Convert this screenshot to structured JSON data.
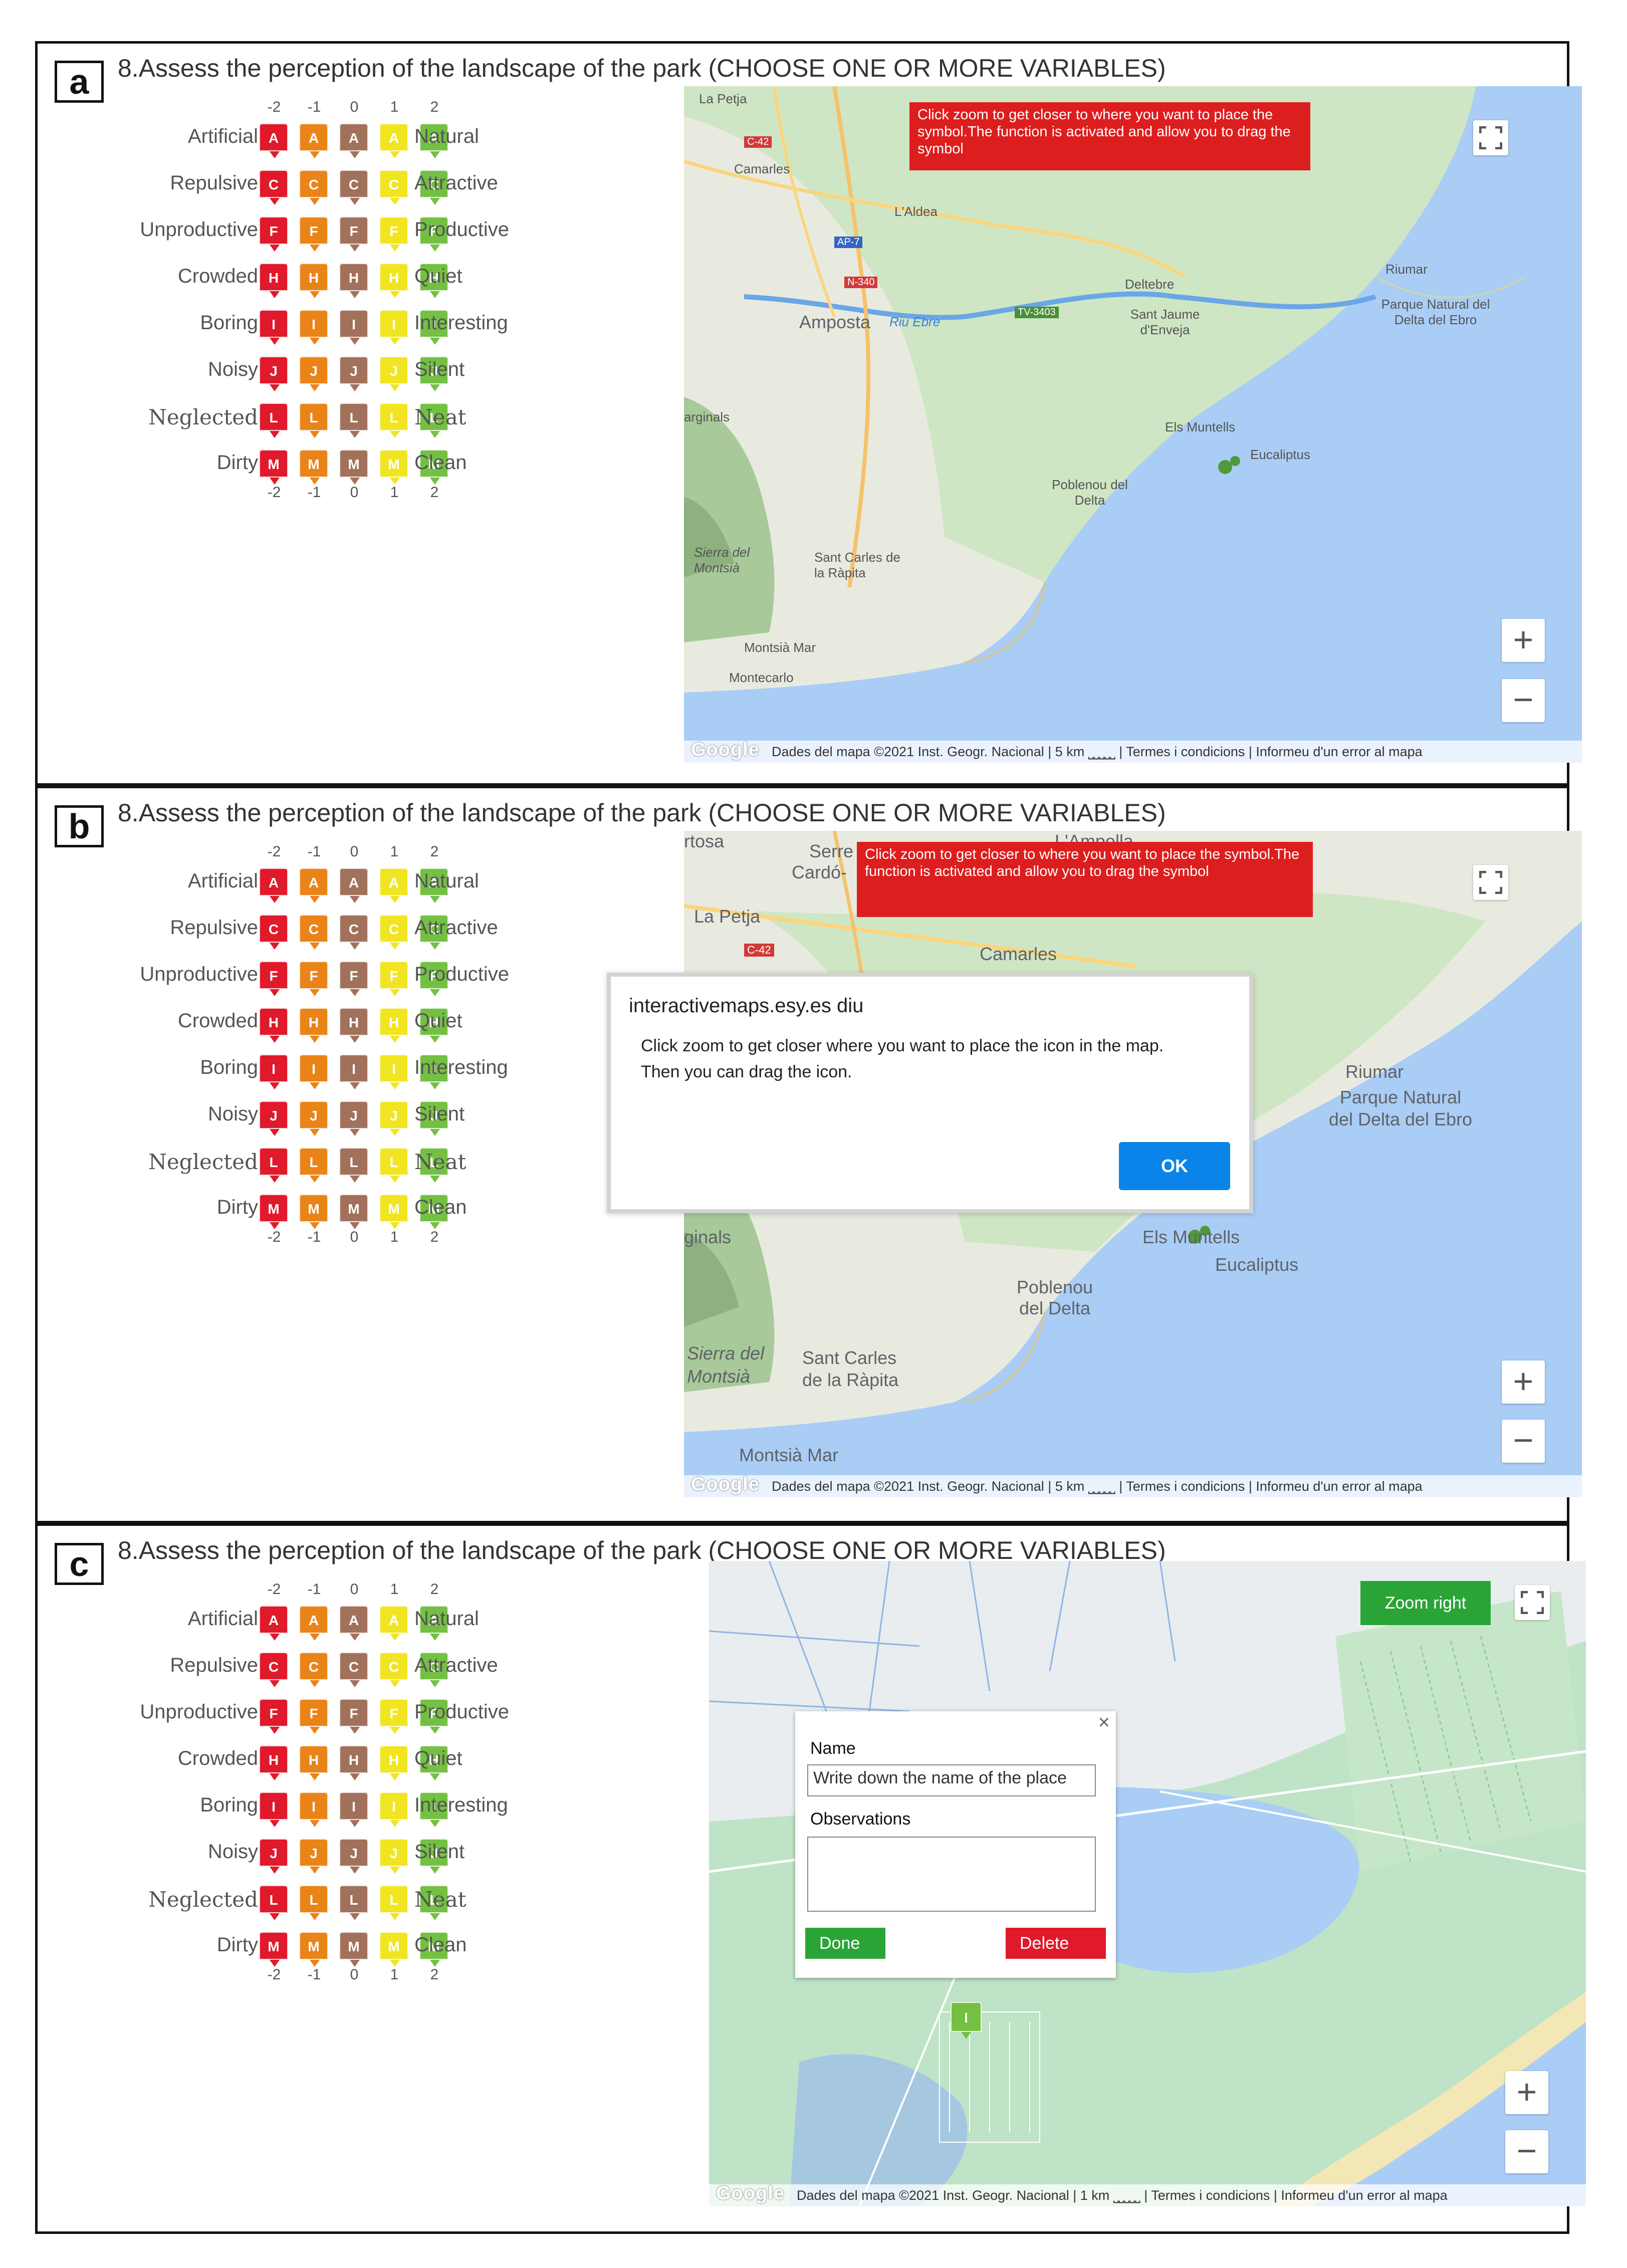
{
  "question": "8.Assess the perception of the landscape of the park (CHOOSE ONE OR MORE VARIABLES)",
  "panel_letters": [
    "a",
    "b",
    "c"
  ],
  "scale_values": [
    "-2",
    "-1",
    "0",
    "1",
    "2"
  ],
  "scale_colors": [
    "#e0192b",
    "#ea8418",
    "#a2715b",
    "#f1e522",
    "#74c043"
  ],
  "variables": [
    {
      "left": "Artificial",
      "right": "Natural",
      "letter": "A"
    },
    {
      "left": "Repulsive",
      "right": "Attractive",
      "letter": "C"
    },
    {
      "left": "Unproductive",
      "right": "Productive",
      "letter": "F"
    },
    {
      "left": "Crowded",
      "right": "Quiet",
      "letter": "H"
    },
    {
      "left": "Boring",
      "right": "Interesting",
      "letter": "I"
    },
    {
      "left": "Noisy",
      "right": "Silent",
      "letter": "J"
    },
    {
      "left": "Neglected",
      "right": "Neat",
      "letter": "L"
    },
    {
      "left": "Dirty",
      "right": "Clean",
      "letter": "M"
    }
  ],
  "map_a": {
    "banner": "Click zoom to get closer to where you want to place the symbol.The function is activated and allow you to drag the symbol",
    "labels": {
      "la_petja": "La Petja",
      "c42": "C-42",
      "camarles": "Camarles",
      "laldea": "L'Aldea",
      "ap7": "AP-7",
      "n340": "N-340",
      "deltebre": "Deltebre",
      "riumar": "Riumar",
      "parque": "Parque Natural del Delta del Ebro",
      "amposta": "Amposta",
      "riu": "Riu Ebre",
      "tv3403": "TV-3403",
      "sant_jaume": "Sant Jaume d'Enveja",
      "marginals": "arginals",
      "els_muntells": "Els Muntells",
      "eucaliptus": "Eucaliptus",
      "poblenou": "Poblenou del Delta",
      "sierra": "Sierra del Montsià",
      "sant_carles": "Sant Carles de la Ràpita",
      "montsia_mar": "Montsià Mar",
      "montecarlo": "Montecarlo"
    },
    "google": "Google",
    "attribution": "Dades del mapa ©2021 Inst. Geogr. Nacional  |  5 km ⎵⎵⎵⎵⎵  |  Termes i condicions  |  Informeu d'un error al mapa"
  },
  "map_b": {
    "banner": "Click zoom to get closer to where you want to place the symbol.The function is activated and allow you to drag the symbol",
    "labels": {
      "tortosa": "rtosa",
      "serre": "Serre",
      "cardo": "Cardó-",
      "lampolla": "L'Ampolla",
      "la_petja": "La Petja",
      "c42": "C-42",
      "camarles": "Camarles",
      "riumar": "Riumar",
      "parque": "Parque Natural del Delta del Ebro",
      "marginals": "ginals",
      "els_muntells": "Els Muntells",
      "eucaliptus": "Eucaliptus",
      "poblenou": "Poblenou del Delta",
      "sierra": "Sierra del Montsià",
      "sant_carles": "Sant Carles de la Ràpita",
      "montsia_mar": "Montsià Mar"
    },
    "google": "Google",
    "attribution": "Dades del mapa ©2021 Inst. Geogr. Nacional  |  5 km ⎵⎵⎵⎵⎵  |  Termes i condicions  |  Informeu d'un error al mapa",
    "dialog": {
      "title": "interactivemaps.esy.es diu",
      "message": "Click zoom to get closer where you want to place the icon in the map. Then you can drag the icon.",
      "ok": "OK"
    }
  },
  "map_c": {
    "zoom_right": "Zoom right",
    "form": {
      "name_label": "Name",
      "name_placeholder": "Write down the name of the place",
      "observations_label": "Observations",
      "done": "Done",
      "delete": "Delete",
      "close": "×"
    },
    "placed_marker": "I",
    "google": "Google",
    "attribution": "Dades del mapa ©2021 Inst. Geogr. Nacional  |  1 km ⎵⎵⎵⎵⎵  |  Termes i condicions  |  Informeu d'un error al mapa"
  }
}
